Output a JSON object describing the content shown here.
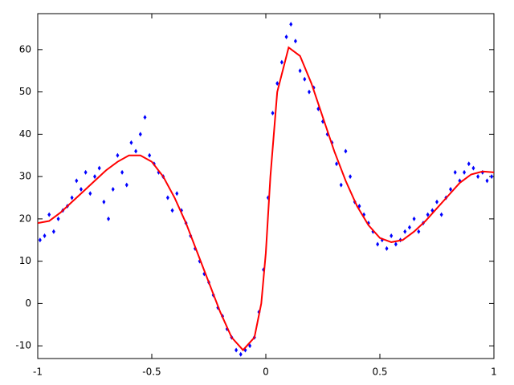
{
  "chart_data": {
    "type": "scatter",
    "xlim": [
      -1,
      1
    ],
    "xticks": [
      -1,
      -0.5,
      0,
      0.5,
      1
    ],
    "ylim": [
      -13,
      68.5
    ],
    "yticks": [
      -10,
      0,
      10,
      20,
      30,
      40,
      50,
      60
    ],
    "series": [
      {
        "type": "scatter",
        "color": "#0000ff",
        "x": [
          -0.99,
          -0.97,
          -0.95,
          -0.93,
          -0.91,
          -0.89,
          -0.87,
          -0.85,
          -0.83,
          -0.81,
          -0.79,
          -0.77,
          -0.75,
          -0.73,
          -0.71,
          -0.69,
          -0.67,
          -0.65,
          -0.63,
          -0.61,
          -0.59,
          -0.57,
          -0.55,
          -0.53,
          -0.51,
          -0.49,
          -0.47,
          -0.45,
          -0.43,
          -0.41,
          -0.39,
          -0.37,
          -0.35,
          -0.33,
          -0.31,
          -0.29,
          -0.27,
          -0.25,
          -0.23,
          -0.21,
          -0.19,
          -0.17,
          -0.15,
          -0.13,
          -0.11,
          -0.09,
          -0.07,
          -0.05,
          -0.03,
          -0.01,
          0.01,
          0.03,
          0.05,
          0.07,
          0.09,
          0.11,
          0.13,
          0.15,
          0.17,
          0.19,
          0.21,
          0.23,
          0.25,
          0.27,
          0.29,
          0.31,
          0.33,
          0.35,
          0.37,
          0.39,
          0.41,
          0.43,
          0.45,
          0.47,
          0.49,
          0.51,
          0.53,
          0.55,
          0.57,
          0.59,
          0.61,
          0.63,
          0.65,
          0.67,
          0.69,
          0.71,
          0.73,
          0.75,
          0.77,
          0.79,
          0.81,
          0.83,
          0.85,
          0.87,
          0.89,
          0.91,
          0.93,
          0.95,
          0.97,
          0.99
        ],
        "values": [
          15,
          16,
          21,
          17,
          20,
          22,
          23,
          25,
          29,
          27,
          31,
          26,
          30,
          32,
          24,
          20,
          27,
          35,
          31,
          28,
          38,
          36,
          40,
          44,
          35,
          33,
          31,
          30,
          25,
          22,
          26,
          22,
          19,
          16,
          13,
          10,
          7,
          5,
          2,
          -1,
          -3,
          -6,
          -8,
          -11,
          -12,
          -11,
          -10,
          -8,
          -2,
          8,
          25,
          45,
          52,
          57,
          63,
          66,
          62,
          55,
          53,
          50,
          51,
          46,
          43,
          40,
          38,
          33,
          28,
          36,
          30,
          24,
          23,
          21,
          19,
          17,
          14,
          15,
          13,
          16,
          14,
          15,
          17,
          18,
          20,
          17,
          19,
          21,
          22,
          24,
          21,
          25,
          27,
          31,
          29,
          31,
          33,
          32,
          30,
          31,
          29,
          30
        ]
      },
      {
        "type": "line",
        "color": "#ff0000",
        "x": [
          -1,
          -0.95,
          -0.9,
          -0.85,
          -0.8,
          -0.75,
          -0.7,
          -0.65,
          -0.6,
          -0.55,
          -0.5,
          -0.45,
          -0.4,
          -0.35,
          -0.3,
          -0.25,
          -0.2,
          -0.15,
          -0.1,
          -0.05,
          -0.02,
          0,
          0.02,
          0.05,
          0.1,
          0.15,
          0.2,
          0.25,
          0.3,
          0.35,
          0.4,
          0.45,
          0.5,
          0.55,
          0.6,
          0.65,
          0.7,
          0.75,
          0.8,
          0.85,
          0.9,
          0.95,
          1
        ],
        "values": [
          19,
          19.5,
          21.5,
          24,
          26.5,
          29,
          31.5,
          33.5,
          35,
          35,
          33.5,
          30,
          25,
          19,
          12,
          5,
          -2,
          -8,
          -11,
          -8,
          0,
          12,
          30,
          50,
          60.5,
          58.5,
          52,
          44,
          36,
          29,
          23,
          18.5,
          15.5,
          14.5,
          15,
          17,
          19.5,
          22.5,
          25.5,
          28.5,
          30.5,
          31.2,
          31
        ]
      }
    ]
  }
}
